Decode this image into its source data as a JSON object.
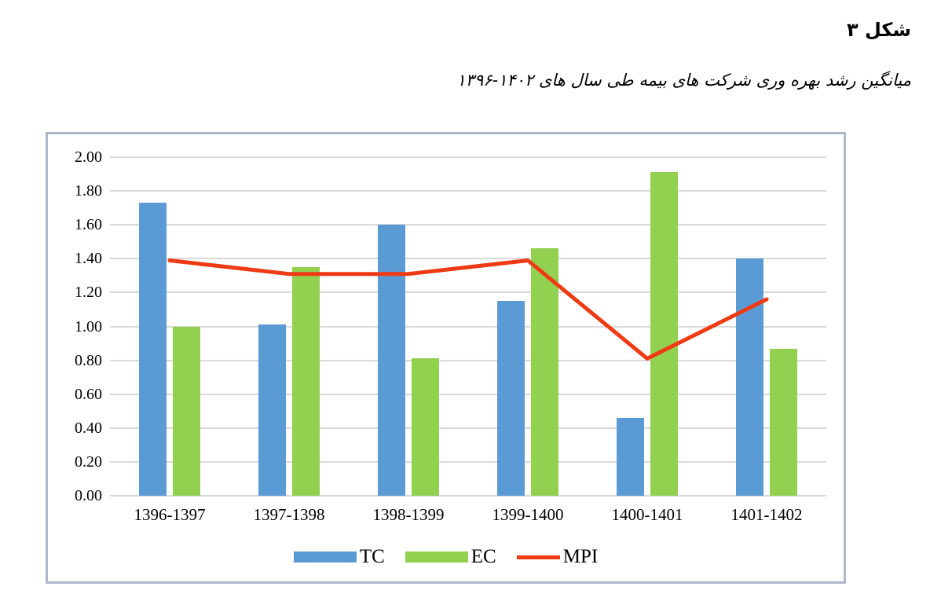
{
  "figure": {
    "label": "شکل ۳",
    "caption": "میانگین رشد بهره وری شرکت های بیمه طی سال های ۱۴۰۲-۱۳۹۶"
  },
  "chart_data": {
    "type": "bar",
    "subtype": "combo-bar-line",
    "categories": [
      "1396-1397",
      "1397-1398",
      "1398-1399",
      "1399-1400",
      "1400-1401",
      "1401-1402"
    ],
    "series": [
      {
        "name": "TC",
        "type": "bar",
        "color": "#5B9BD5",
        "values": [
          1.73,
          1.01,
          1.6,
          1.15,
          0.46,
          1.4
        ]
      },
      {
        "name": "EC",
        "type": "bar",
        "color": "#92D050",
        "values": [
          1.0,
          1.35,
          0.81,
          1.46,
          1.91,
          0.87
        ]
      },
      {
        "name": "MPI",
        "type": "line",
        "color": "#EE3B13",
        "values": [
          1.39,
          1.31,
          1.31,
          1.39,
          0.81,
          1.16
        ]
      }
    ],
    "title": "",
    "xlabel": "",
    "ylabel": "",
    "ylim": [
      0,
      2
    ],
    "ytick_step": 0.2,
    "ytick_decimals": 2,
    "grid": true,
    "legend_position": "bottom",
    "gridline_color": "#D9D9D9",
    "frame_border_color": "#AEB8CA"
  }
}
